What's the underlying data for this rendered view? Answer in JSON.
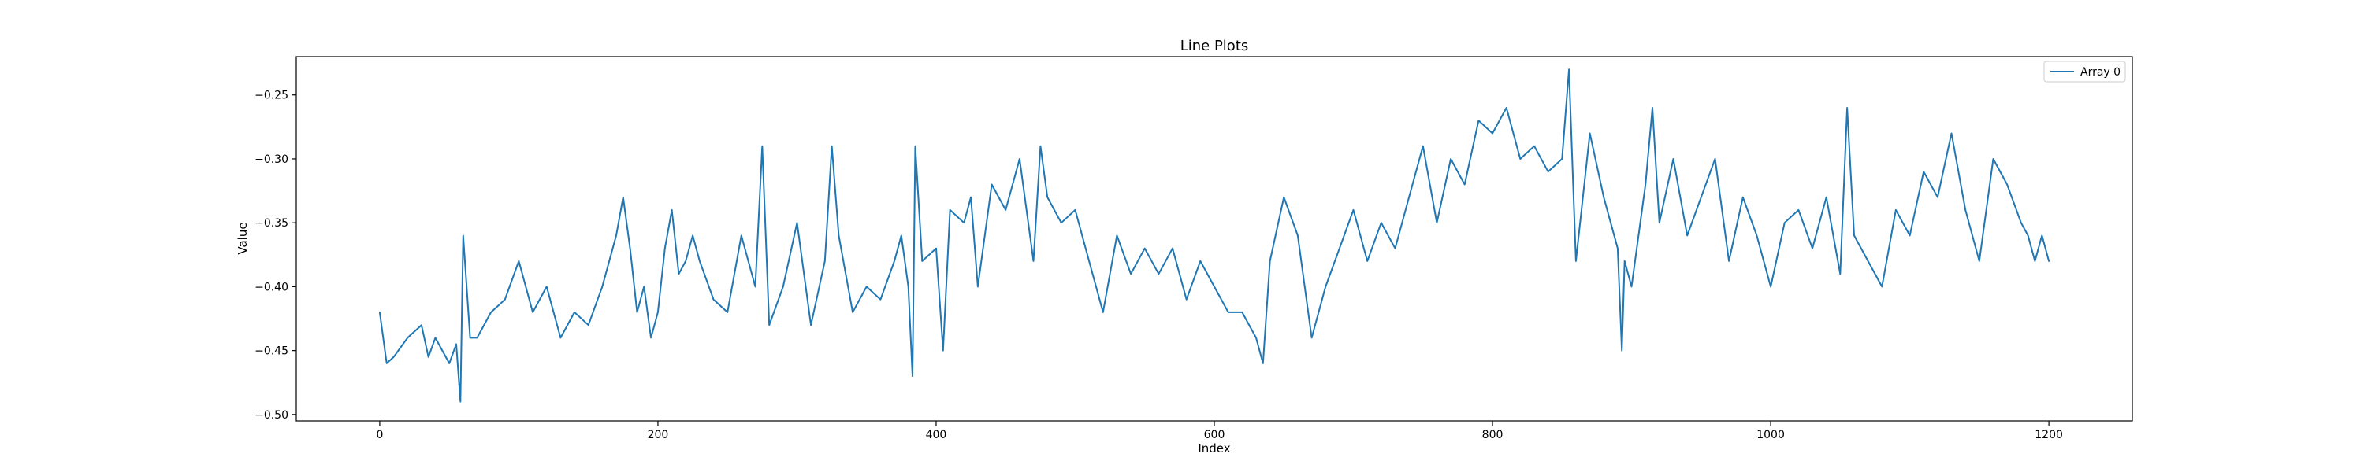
{
  "chart_data": {
    "type": "line",
    "title": "Line Plots",
    "xlabel": "Index",
    "ylabel": "Value",
    "xlim": [
      -60,
      1260
    ],
    "ylim": [
      -0.505,
      -0.22
    ],
    "xticks": [
      0,
      200,
      400,
      600,
      800,
      1000,
      1200
    ],
    "yticks": [
      -0.5,
      -0.45,
      -0.4,
      -0.35,
      -0.3,
      -0.25
    ],
    "xtick_labels": [
      "0",
      "200",
      "400",
      "600",
      "800",
      "1000",
      "1200"
    ],
    "ytick_labels": [
      "−0.50",
      "−0.45",
      "−0.40",
      "−0.35",
      "−0.30",
      "−0.25"
    ],
    "grid": false,
    "legend": {
      "position": "top-right",
      "entries": [
        "Array 0"
      ]
    },
    "series": [
      {
        "name": "Array 0",
        "color": "#1f77b4",
        "x": [
          0,
          5,
          10,
          20,
          30,
          35,
          40,
          45,
          50,
          55,
          58,
          60,
          65,
          70,
          80,
          90,
          100,
          110,
          120,
          130,
          140,
          150,
          160,
          170,
          175,
          180,
          185,
          190,
          195,
          200,
          205,
          210,
          215,
          220,
          225,
          230,
          240,
          250,
          260,
          270,
          275,
          280,
          290,
          300,
          310,
          320,
          325,
          330,
          340,
          350,
          360,
          370,
          375,
          380,
          383,
          385,
          390,
          400,
          405,
          410,
          420,
          425,
          430,
          440,
          450,
          460,
          470,
          475,
          480,
          490,
          500,
          510,
          520,
          530,
          540,
          550,
          560,
          570,
          580,
          590,
          600,
          610,
          620,
          630,
          635,
          640,
          650,
          660,
          670,
          680,
          690,
          700,
          710,
          720,
          730,
          740,
          750,
          760,
          770,
          780,
          790,
          800,
          810,
          820,
          830,
          840,
          850,
          855,
          860,
          870,
          880,
          890,
          893,
          895,
          900,
          910,
          915,
          920,
          930,
          940,
          950,
          960,
          970,
          980,
          990,
          1000,
          1010,
          1020,
          1030,
          1040,
          1050,
          1055,
          1060,
          1070,
          1080,
          1090,
          1100,
          1110,
          1120,
          1130,
          1140,
          1150,
          1160,
          1170,
          1180,
          1185,
          1190,
          1195,
          1200
        ],
        "values": [
          -0.42,
          -0.46,
          -0.455,
          -0.44,
          -0.43,
          -0.455,
          -0.44,
          -0.45,
          -0.46,
          -0.445,
          -0.49,
          -0.36,
          -0.44,
          -0.44,
          -0.42,
          -0.41,
          -0.38,
          -0.42,
          -0.4,
          -0.44,
          -0.42,
          -0.43,
          -0.4,
          -0.36,
          -0.33,
          -0.37,
          -0.42,
          -0.4,
          -0.44,
          -0.42,
          -0.37,
          -0.34,
          -0.39,
          -0.38,
          -0.36,
          -0.38,
          -0.41,
          -0.42,
          -0.36,
          -0.4,
          -0.29,
          -0.43,
          -0.4,
          -0.35,
          -0.43,
          -0.38,
          -0.29,
          -0.36,
          -0.42,
          -0.4,
          -0.41,
          -0.38,
          -0.36,
          -0.4,
          -0.47,
          -0.29,
          -0.38,
          -0.37,
          -0.45,
          -0.34,
          -0.35,
          -0.33,
          -0.4,
          -0.32,
          -0.34,
          -0.3,
          -0.38,
          -0.29,
          -0.33,
          -0.35,
          -0.34,
          -0.38,
          -0.42,
          -0.36,
          -0.39,
          -0.37,
          -0.39,
          -0.37,
          -0.41,
          -0.38,
          -0.4,
          -0.42,
          -0.42,
          -0.44,
          -0.46,
          -0.38,
          -0.33,
          -0.36,
          -0.44,
          -0.4,
          -0.37,
          -0.34,
          -0.38,
          -0.35,
          -0.37,
          -0.33,
          -0.29,
          -0.35,
          -0.3,
          -0.32,
          -0.27,
          -0.28,
          -0.26,
          -0.3,
          -0.29,
          -0.31,
          -0.3,
          -0.23,
          -0.38,
          -0.28,
          -0.33,
          -0.37,
          -0.45,
          -0.38,
          -0.4,
          -0.32,
          -0.26,
          -0.35,
          -0.3,
          -0.36,
          -0.33,
          -0.3,
          -0.38,
          -0.33,
          -0.36,
          -0.4,
          -0.35,
          -0.34,
          -0.37,
          -0.33,
          -0.39,
          -0.26,
          -0.36,
          -0.38,
          -0.4,
          -0.34,
          -0.36,
          -0.31,
          -0.33,
          -0.28,
          -0.34,
          -0.38,
          -0.3,
          -0.32,
          -0.35,
          -0.36,
          -0.38,
          -0.36,
          -0.38
        ]
      }
    ]
  }
}
